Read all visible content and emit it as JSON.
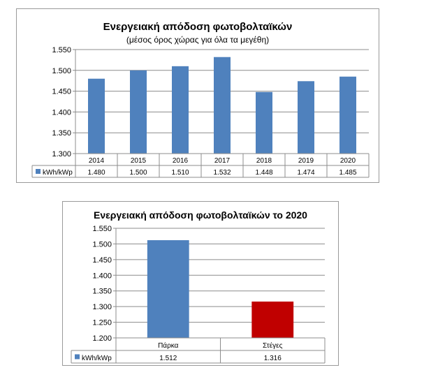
{
  "chart_data": [
    {
      "type": "bar",
      "title": "Ενεργειακή απόδοση φωτοβολταϊκών",
      "subtitle": "(μέσος όρος χώρας για όλα τα μεγέθη)",
      "categories": [
        "2014",
        "2015",
        "2016",
        "2017",
        "2018",
        "2019",
        "2020"
      ],
      "series": [
        {
          "name": "kWh/kWp",
          "values": [
            1480,
            1500,
            1510,
            1532,
            1448,
            1474,
            1485
          ],
          "labels": [
            "1.480",
            "1.500",
            "1.510",
            "1.532",
            "1.448",
            "1.474",
            "1.485"
          ],
          "color": "#4f81bd"
        }
      ],
      "yticks": [
        "1.550",
        "1.500",
        "1.450",
        "1.400",
        "1.350",
        "1.300"
      ],
      "ylim": [
        1300,
        1550
      ],
      "grid": true,
      "legend": "data-table"
    },
    {
      "type": "bar",
      "title": "Ενεργειακή απόδοση φωτοβολταϊκών το 2020",
      "categories": [
        "Πάρκα",
        "Στέγες"
      ],
      "series": [
        {
          "name": "kWh/kWp",
          "values": [
            1512,
            1316
          ],
          "labels": [
            "1.512",
            "1.316"
          ],
          "colors": [
            "#4f81bd",
            "#c00000"
          ]
        }
      ],
      "yticks": [
        "1.550",
        "1.500",
        "1.450",
        "1.400",
        "1.350",
        "1.300",
        "1.250",
        "1.200"
      ],
      "ylim": [
        1200,
        1550
      ],
      "grid": true,
      "legend": "data-table"
    }
  ]
}
